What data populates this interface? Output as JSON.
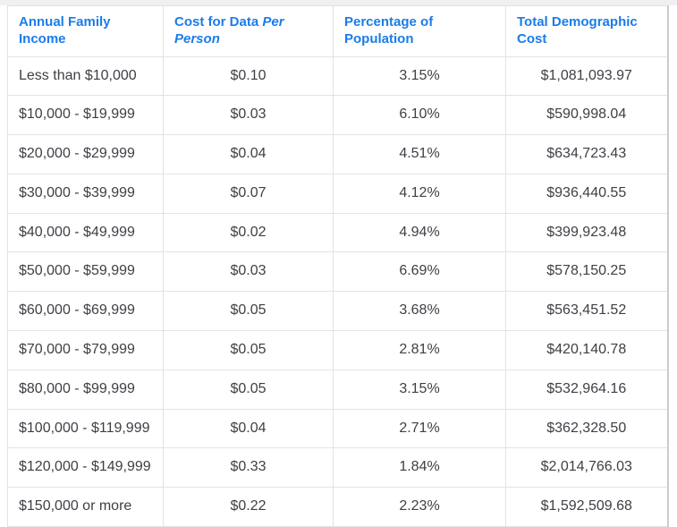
{
  "page": {
    "background_color": "#ffffff",
    "top_strip_color": "#f0f0f2",
    "accent_blue": "#1a7cea",
    "body_text_color": "#3e4046",
    "grid_border_color": "#e3e3e6"
  },
  "table": {
    "columns": [
      {
        "label": "Annual Family Income"
      },
      {
        "label": "Cost for Data",
        "label_italic": "Per Person"
      },
      {
        "label": "Percentage of Population"
      },
      {
        "label": "Total Demographic Cost"
      }
    ],
    "rows": [
      {
        "income": "Less than $10,000",
        "cost_per_person": "$0.10",
        "pct_population": "3.15%",
        "total_cost": "$1,081,093.97"
      },
      {
        "income": "$10,000 - $19,999",
        "cost_per_person": "$0.03",
        "pct_population": "6.10%",
        "total_cost": "$590,998.04"
      },
      {
        "income": "$20,000 - $29,999",
        "cost_per_person": "$0.04",
        "pct_population": "4.51%",
        "total_cost": "$634,723.43"
      },
      {
        "income": "$30,000 - $39,999",
        "cost_per_person": "$0.07",
        "pct_population": "4.12%",
        "total_cost": "$936,440.55"
      },
      {
        "income": "$40,000 - $49,999",
        "cost_per_person": "$0.02",
        "pct_population": "4.94%",
        "total_cost": "$399,923.48"
      },
      {
        "income": "$50,000 - $59,999",
        "cost_per_person": "$0.03",
        "pct_population": "6.69%",
        "total_cost": "$578,150.25"
      },
      {
        "income": "$60,000 - $69,999",
        "cost_per_person": "$0.05",
        "pct_population": "3.68%",
        "total_cost": "$563,451.52"
      },
      {
        "income": "$70,000 - $79,999",
        "cost_per_person": "$0.05",
        "pct_population": "2.81%",
        "total_cost": "$420,140.78"
      },
      {
        "income": "$80,000 - $99,999",
        "cost_per_person": "$0.05",
        "pct_population": "3.15%",
        "total_cost": "$532,964.16"
      },
      {
        "income": "$100,000 - $119,999",
        "cost_per_person": "$0.04",
        "pct_population": "2.71%",
        "total_cost": "$362,328.50"
      },
      {
        "income": "$120,000 - $149,999",
        "cost_per_person": "$0.33",
        "pct_population": "1.84%",
        "total_cost": "$2,014,766.03"
      },
      {
        "income": "$150,000 or more",
        "cost_per_person": "$0.22",
        "pct_population": "2.23%",
        "total_cost": "$1,592,509.68"
      }
    ]
  }
}
